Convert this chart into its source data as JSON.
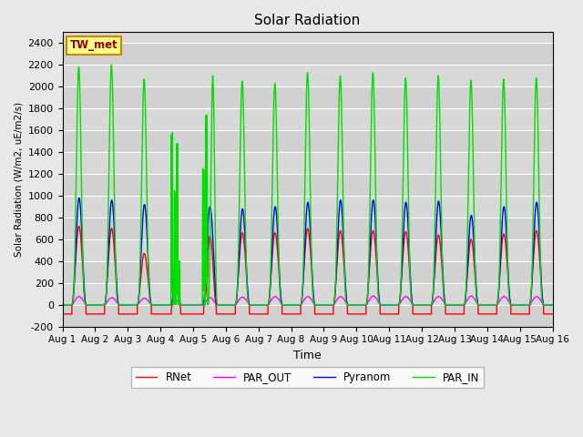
{
  "title": "Solar Radiation",
  "ylabel": "Solar Radiation (W/m2, uE/m2/s)",
  "xlabel": "Time",
  "station_label": "TW_met",
  "ylim": [
    -200,
    2500
  ],
  "yticks": [
    -200,
    0,
    200,
    400,
    600,
    800,
    1000,
    1200,
    1400,
    1600,
    1800,
    2000,
    2200,
    2400
  ],
  "xtick_labels": [
    "Aug 1",
    "Aug 2",
    "Aug 3",
    "Aug 4",
    "Aug 5",
    "Aug 6",
    "Aug 7",
    "Aug 8",
    "Aug 9",
    "Aug 10",
    "Aug 11",
    "Aug 12",
    "Aug 13",
    "Aug 14",
    "Aug 15",
    "Aug 16"
  ],
  "n_days": 15,
  "points_per_day": 288,
  "colors": {
    "RNet": "#ff0000",
    "Pyranom": "#0000ff",
    "PAR_IN": "#00dd00",
    "PAR_OUT": "#ff00ff"
  },
  "fig_bg": "#e8e8e8",
  "plot_bg": "#d8d8d8",
  "par_in_peaks": [
    2180,
    2200,
    2070,
    1480,
    2100,
    2050,
    2030,
    2130,
    2100,
    2130,
    2080,
    2100,
    2060,
    2070,
    2080
  ],
  "pyranom_peaks": [
    980,
    960,
    920,
    620,
    900,
    880,
    900,
    940,
    960,
    960,
    940,
    950,
    820,
    900,
    940
  ],
  "rnet_peaks": [
    720,
    700,
    470,
    480,
    650,
    660,
    660,
    700,
    680,
    680,
    670,
    640,
    600,
    650,
    680
  ],
  "par_out_peaks": [
    75,
    65,
    60,
    55,
    65,
    70,
    75,
    75,
    75,
    80,
    75,
    75,
    80,
    75,
    75
  ],
  "rnet_night": -85,
  "line_width": 1.0
}
